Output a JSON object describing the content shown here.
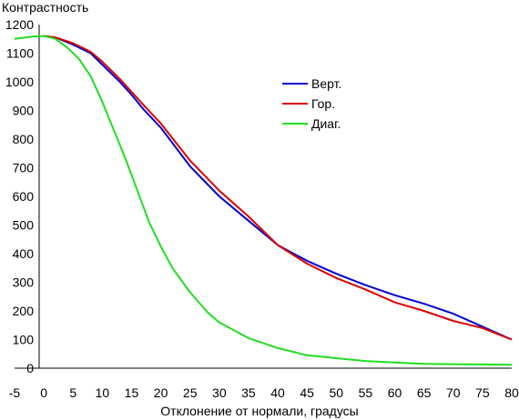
{
  "chart_data": {
    "type": "line",
    "title": "",
    "ylabel": "Контрастность",
    "xlabel": "Отклонение от нормали, градусы",
    "xlim": [
      -5,
      80
    ],
    "ylim": [
      0,
      1200
    ],
    "xticks": [
      -5,
      0,
      5,
      10,
      15,
      20,
      25,
      30,
      35,
      40,
      45,
      50,
      55,
      60,
      65,
      70,
      75,
      80
    ],
    "yticks": [
      0,
      100,
      200,
      300,
      400,
      500,
      600,
      700,
      800,
      900,
      1000,
      1100,
      1200
    ],
    "grid": false,
    "legend_position": "right, upper middle",
    "series": [
      {
        "name": "Верт.",
        "color": "#0000cc",
        "x": [
          0,
          2,
          5,
          8,
          10,
          13,
          15,
          17,
          20,
          25,
          30,
          35,
          40,
          45,
          50,
          55,
          60,
          65,
          70,
          75,
          80
        ],
        "y": [
          1160,
          1155,
          1130,
          1100,
          1060,
          1000,
          955,
          905,
          840,
          705,
          600,
          515,
          430,
          375,
          330,
          290,
          255,
          225,
          190,
          145,
          100
        ]
      },
      {
        "name": "Гор.",
        "color": "#dd0000",
        "x": [
          0,
          2,
          5,
          8,
          10,
          13,
          15,
          17,
          20,
          25,
          30,
          35,
          40,
          45,
          50,
          55,
          60,
          65,
          70,
          75,
          80
        ],
        "y": [
          1160,
          1155,
          1135,
          1105,
          1070,
          1010,
          965,
          920,
          855,
          725,
          620,
          530,
          430,
          365,
          315,
          275,
          230,
          200,
          165,
          140,
          100
        ]
      },
      {
        "name": "Диаг.",
        "color": "#22dd22",
        "x": [
          -5,
          -2,
          0,
          2,
          4,
          6,
          8,
          10,
          12,
          14,
          16,
          18,
          20,
          22,
          25,
          28,
          30,
          35,
          40,
          45,
          50,
          55,
          60,
          65,
          70,
          75,
          80
        ],
        "y": [
          1150,
          1158,
          1160,
          1150,
          1120,
          1080,
          1020,
          930,
          830,
          730,
          620,
          510,
          425,
          350,
          265,
          195,
          160,
          105,
          70,
          45,
          35,
          25,
          20,
          15,
          14,
          13,
          12
        ]
      }
    ]
  }
}
